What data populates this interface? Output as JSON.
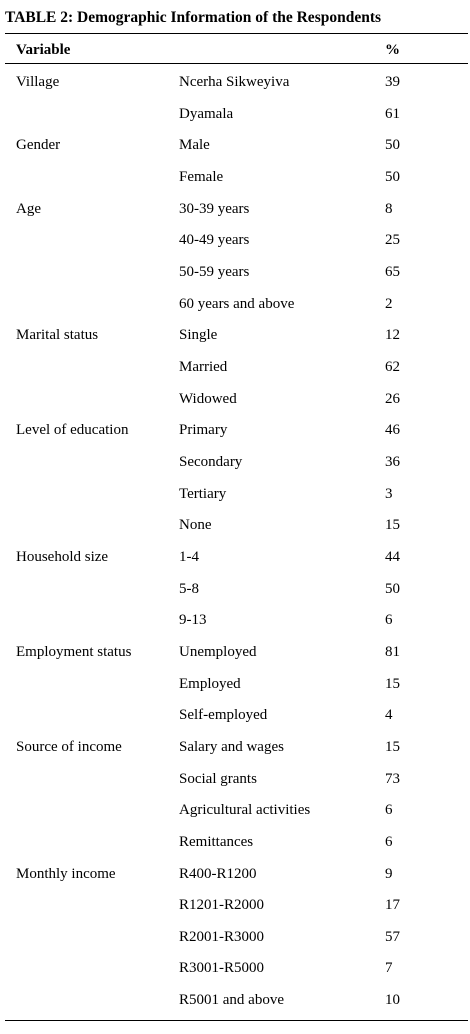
{
  "table": {
    "title": "TABLE 2: Demographic Information of the Respondents",
    "header": [
      "Variable",
      "%"
    ],
    "groups": [
      {
        "variable": "Village",
        "items": [
          {
            "label": "Ncerha Sikweyiva",
            "value": 39
          },
          {
            "label": "Dyamala",
            "value": 61
          }
        ]
      },
      {
        "variable": "Gender",
        "items": [
          {
            "label": "Male",
            "value": 50
          },
          {
            "label": "Female",
            "value": 50
          }
        ]
      },
      {
        "variable": "Age",
        "items": [
          {
            "label": "30-39 years",
            "value": 8
          },
          {
            "label": "40-49 years",
            "value": 25
          },
          {
            "label": "50-59 years",
            "value": 65
          },
          {
            "label": "60 years and above",
            "value": 2
          }
        ]
      },
      {
        "variable": "Marital status",
        "items": [
          {
            "label": "Single",
            "value": 12
          },
          {
            "label": "Married",
            "value": 62
          },
          {
            "label": "Widowed",
            "value": 26
          }
        ]
      },
      {
        "variable": "Level of education",
        "items": [
          {
            "label": "Primary",
            "value": 46
          },
          {
            "label": "Secondary",
            "value": 36
          },
          {
            "label": "Tertiary",
            "value": 3
          },
          {
            "label": "None",
            "value": 15
          }
        ]
      },
      {
        "variable": "Household size",
        "items": [
          {
            "label": "1-4",
            "value": 44
          },
          {
            "label": "5-8",
            "value": 50
          },
          {
            "label": "9-13",
            "value": 6
          }
        ]
      },
      {
        "variable": "Employment status",
        "items": [
          {
            "label": "Unemployed",
            "value": 81
          },
          {
            "label": "Employed",
            "value": 15
          },
          {
            "label": "Self-employed",
            "value": 4
          }
        ]
      },
      {
        "variable": "Source of income",
        "items": [
          {
            "label": "Salary and wages",
            "value": 15
          },
          {
            "label": "Social grants",
            "value": 73
          },
          {
            "label": "Agricultural activities",
            "value": 6
          },
          {
            "label": "Remittances",
            "value": 6
          }
        ]
      },
      {
        "variable": "Monthly income",
        "items": [
          {
            "label": "R400-R1200",
            "value": 9
          },
          {
            "label": "R1201-R2000",
            "value": 17
          },
          {
            "label": "R2001-R3000",
            "value": 57
          },
          {
            "label": "R3001-R5000",
            "value": 7
          },
          {
            "label": "R5001 and above",
            "value": 10
          }
        ]
      }
    ]
  }
}
